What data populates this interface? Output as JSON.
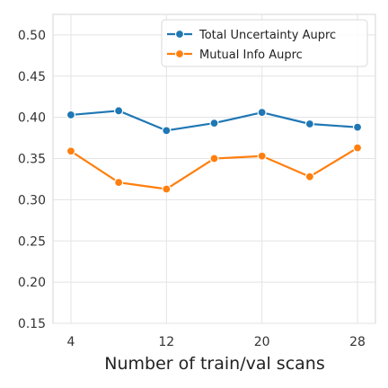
{
  "chart_data": {
    "type": "line",
    "xlabel": "Number of train/val scans",
    "ylabel": "",
    "title": "",
    "x": [
      4,
      8,
      12,
      16,
      20,
      24,
      28
    ],
    "xticks": [
      4,
      12,
      20,
      28
    ],
    "xlim": [
      2.5,
      29.5
    ],
    "ylim": [
      0.15,
      0.525
    ],
    "yticks": [
      0.15,
      0.2,
      0.25,
      0.3,
      0.35,
      0.4,
      0.45,
      0.5
    ],
    "ytick_labels": [
      "0.15",
      "0.20",
      "0.25",
      "0.30",
      "0.35",
      "0.40",
      "0.45",
      "0.50"
    ],
    "grid": true,
    "legend_position": "top-right",
    "series": [
      {
        "name": "Total Uncertainty Auprc",
        "color": "#1f77b4",
        "values": [
          0.403,
          0.408,
          0.384,
          0.393,
          0.406,
          0.392,
          0.388
        ]
      },
      {
        "name": "Mutual Info Auprc",
        "color": "#ff7f0e",
        "values": [
          0.359,
          0.321,
          0.313,
          0.35,
          0.353,
          0.328,
          0.363
        ]
      }
    ]
  }
}
